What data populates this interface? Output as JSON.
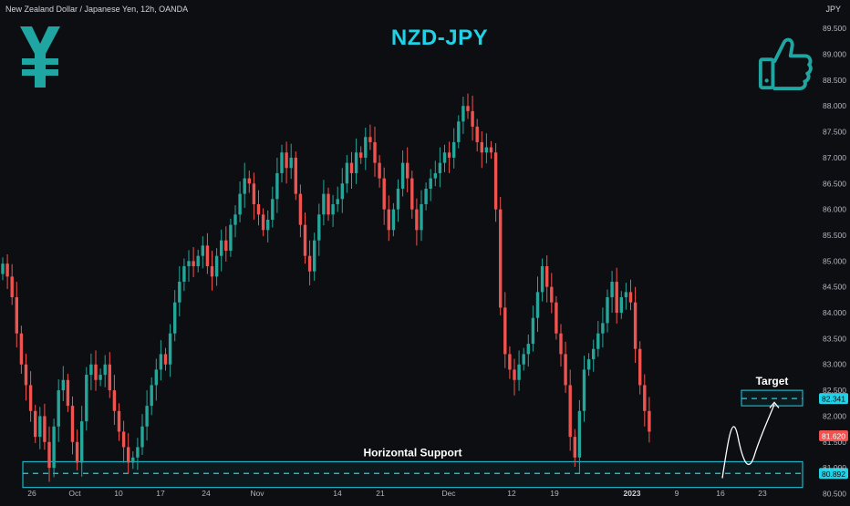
{
  "header": {
    "symbol_description": "New Zealand Dollar / Japanese Yen, 12h, OANDA",
    "currency_unit": "JPY"
  },
  "title": "NZD-JPY",
  "icons": {
    "left": "yen-symbol-icon",
    "right": "thumbs-up-icon"
  },
  "colors": {
    "up": "#26a69a",
    "down": "#ef5350",
    "accent": "#1fd2e6",
    "background": "#0d0e12"
  },
  "chart_data": {
    "type": "candlestick",
    "title": "NZD-JPY",
    "y_axis": {
      "ticks": [
        80.5,
        81.0,
        81.5,
        82.0,
        82.5,
        83.0,
        83.5,
        84.0,
        84.5,
        85.0,
        85.5,
        86.0,
        86.5,
        87.0,
        87.5,
        88.0,
        88.5,
        89.0,
        89.5
      ],
      "tick_labels": [
        "80.500",
        "81.000",
        "81.500",
        "82.000",
        "82.500",
        "83.000",
        "83.500",
        "84.000",
        "84.500",
        "85.000",
        "85.500",
        "86.000",
        "86.500",
        "87.000",
        "87.500",
        "88.000",
        "88.500",
        "89.000",
        "89.500"
      ],
      "ylim": [
        80.35,
        90.05
      ],
      "position": "right"
    },
    "x_axis": {
      "ticks": [
        {
          "label": "26",
          "bold": false
        },
        {
          "label": "Oct",
          "bold": false
        },
        {
          "label": "10",
          "bold": false
        },
        {
          "label": "17",
          "bold": false
        },
        {
          "label": "24",
          "bold": false
        },
        {
          "label": "Nov",
          "bold": false
        },
        {
          "label": "14",
          "bold": false
        },
        {
          "label": "21",
          "bold": false
        },
        {
          "label": "Dec",
          "bold": false
        },
        {
          "label": "12",
          "bold": false
        },
        {
          "label": "19",
          "bold": false
        },
        {
          "label": "2023",
          "bold": true
        },
        {
          "label": "9",
          "bold": false
        },
        {
          "label": "16",
          "bold": false
        },
        {
          "label": "23",
          "bold": false
        }
      ]
    },
    "closes": [
      84.95,
      84.7,
      84.3,
      83.6,
      83.0,
      82.6,
      82.1,
      81.6,
      82.0,
      81.5,
      81.0,
      81.8,
      82.5,
      82.7,
      82.2,
      81.5,
      81.1,
      81.9,
      82.8,
      83.0,
      82.7,
      82.8,
      83.0,
      82.5,
      82.1,
      81.7,
      81.4,
      81.1,
      81.2,
      81.4,
      81.8,
      82.2,
      82.6,
      82.9,
      83.2,
      83.0,
      83.6,
      84.2,
      84.6,
      84.9,
      85.0,
      84.9,
      85.1,
      85.3,
      84.9,
      84.7,
      85.1,
      85.4,
      85.2,
      85.7,
      85.9,
      86.3,
      86.6,
      86.5,
      86.1,
      85.9,
      85.6,
      85.8,
      86.2,
      86.7,
      87.1,
      86.8,
      87.0,
      86.3,
      85.7,
      85.1,
      84.8,
      85.4,
      85.9,
      86.3,
      85.9,
      86.1,
      86.2,
      86.5,
      86.9,
      86.7,
      87.1,
      87.0,
      87.4,
      87.3,
      86.9,
      86.6,
      86.0,
      85.6,
      86.0,
      86.4,
      86.9,
      86.6,
      86.0,
      85.6,
      86.1,
      86.4,
      86.6,
      86.7,
      86.9,
      87.1,
      87.0,
      87.3,
      87.7,
      88.0,
      87.9,
      87.6,
      87.3,
      87.1,
      87.2,
      87.1,
      86.0,
      84.1,
      83.2,
      82.9,
      82.7,
      83.0,
      83.2,
      83.4,
      83.9,
      84.4,
      84.9,
      84.5,
      84.2,
      83.6,
      83.2,
      82.6,
      81.6,
      81.2,
      82.1,
      82.9,
      83.1,
      83.3,
      83.6,
      83.8,
      84.3,
      84.6,
      84.0,
      84.3,
      84.4,
      84.2,
      83.3,
      82.6,
      82.1,
      81.7
    ],
    "open_first": 84.75,
    "markers": [
      "16",
      "2023"
    ],
    "zones": [
      {
        "name": "horizontal-support",
        "label": "Horizontal Support",
        "top": 81.12,
        "bottom": 80.62,
        "level": 80.892,
        "level_label": "80.892"
      },
      {
        "name": "target",
        "label": "Target",
        "top": 82.5,
        "bottom": 82.2,
        "level": 82.341,
        "level_label": "82.341"
      }
    ],
    "last_price": {
      "value": 81.62,
      "label": "81.620"
    },
    "projected_path": [
      [
        80.8,
        0.0
      ],
      [
        81.6,
        0.3
      ],
      [
        81.25,
        0.55
      ],
      [
        82.3,
        1.0
      ]
    ]
  }
}
